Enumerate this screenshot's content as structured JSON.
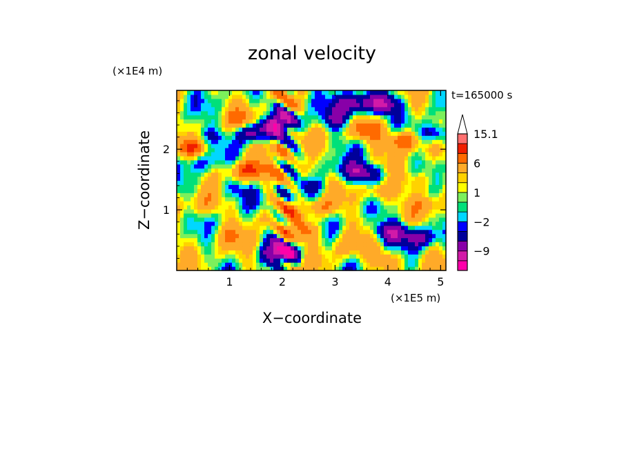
{
  "chart_data": {
    "type": "heatmap",
    "title": "zonal velocity",
    "time_label": "t=165000 s",
    "xlabel": "X−coordinate",
    "ylabel": "Z−coordinate",
    "x_unit": "(×1E5 m)",
    "y_unit": "(×1E4 m)",
    "xlim": [
      0,
      5.1
    ],
    "ylim": [
      0,
      2.97
    ],
    "x_ticks": [
      1,
      2,
      3,
      4,
      5
    ],
    "y_ticks": [
      1,
      2
    ],
    "x_tick_labels": [
      "1",
      "2",
      "3",
      "4",
      "5"
    ],
    "y_tick_labels": [
      "1",
      "2"
    ],
    "colorbar": {
      "levels": [
        -15.1,
        -12,
        -9,
        -6,
        -3,
        -2,
        -1,
        0,
        1,
        2,
        3,
        6,
        9,
        12,
        15.1
      ],
      "colors": [
        "#ff00aa",
        "#d21aa8",
        "#8800a8",
        "#00009a",
        "#0000ff",
        "#00d7ff",
        "#00e07a",
        "#7cf05c",
        "#ffff00",
        "#ffd200",
        "#ffaa28",
        "#ff6a00",
        "#f01e00",
        "#ff7070",
        "#ffc8c8"
      ],
      "extend_top_color": "#ffffff",
      "labels": [
        "15.1",
        "6",
        "1",
        "−2",
        "−9"
      ],
      "label_values": [
        15.1,
        6,
        1,
        -2,
        -9
      ]
    },
    "field": {
      "nx": 78,
      "nz": 44,
      "description_scale": 9,
      "features": [
        {
          "x": 0.3,
          "z": 2.05,
          "value": 7
        },
        {
          "x": 1.3,
          "z": 1.65,
          "value": 8
        },
        {
          "x": 1.25,
          "z": 2.45,
          "value": 6
        },
        {
          "x": 1.4,
          "z": 2.3,
          "value": -11
        },
        {
          "x": 0.5,
          "z": 2.2,
          "value": -5
        },
        {
          "x": 0.4,
          "z": 1.8,
          "value": -4
        },
        {
          "x": 1.1,
          "z": 1.35,
          "value": -4
        },
        {
          "x": 0.45,
          "z": 1.1,
          "value": 3
        },
        {
          "x": 1.0,
          "z": 0.55,
          "value": 3
        },
        {
          "x": 1.6,
          "z": 0.9,
          "value": 2
        },
        {
          "x": 2.0,
          "z": 2.45,
          "value": -10
        },
        {
          "x": 2.4,
          "z": 0.65,
          "value": 7
        },
        {
          "x": 2.3,
          "z": 1.6,
          "value": 4
        },
        {
          "x": 2.75,
          "z": 1.05,
          "value": 5
        },
        {
          "x": 2.55,
          "z": 1.35,
          "value": -4
        },
        {
          "x": 3.05,
          "z": 2.5,
          "value": -6
        },
        {
          "x": 3.35,
          "z": 2.75,
          "value": -10
        },
        {
          "x": 3.9,
          "z": 2.75,
          "value": -11
        },
        {
          "x": 3.2,
          "z": 1.65,
          "value": -5
        },
        {
          "x": 3.6,
          "z": 1.6,
          "value": -8
        },
        {
          "x": 3.85,
          "z": 1.3,
          "value": 6
        },
        {
          "x": 4.05,
          "z": 0.65,
          "value": -9
        },
        {
          "x": 4.6,
          "z": 0.55,
          "value": -8
        },
        {
          "x": 4.3,
          "z": 2.15,
          "value": 9
        },
        {
          "x": 4.9,
          "z": 2.25,
          "value": -8
        },
        {
          "x": 4.6,
          "z": 1.5,
          "value": 4
        },
        {
          "x": 3.6,
          "z": 2.3,
          "value": 7
        },
        {
          "x": 3.2,
          "z": 0.4,
          "value": 3
        },
        {
          "x": 4.0,
          "z": 0.2,
          "value": 5
        },
        {
          "x": 4.8,
          "z": 1.1,
          "value": 3
        },
        {
          "x": 2.0,
          "z": 0.3,
          "value": -12
        },
        {
          "x": 1.75,
          "z": 2.05,
          "value": 3
        },
        {
          "x": 0.1,
          "z": 0.5,
          "value": 1
        }
      ]
    }
  }
}
